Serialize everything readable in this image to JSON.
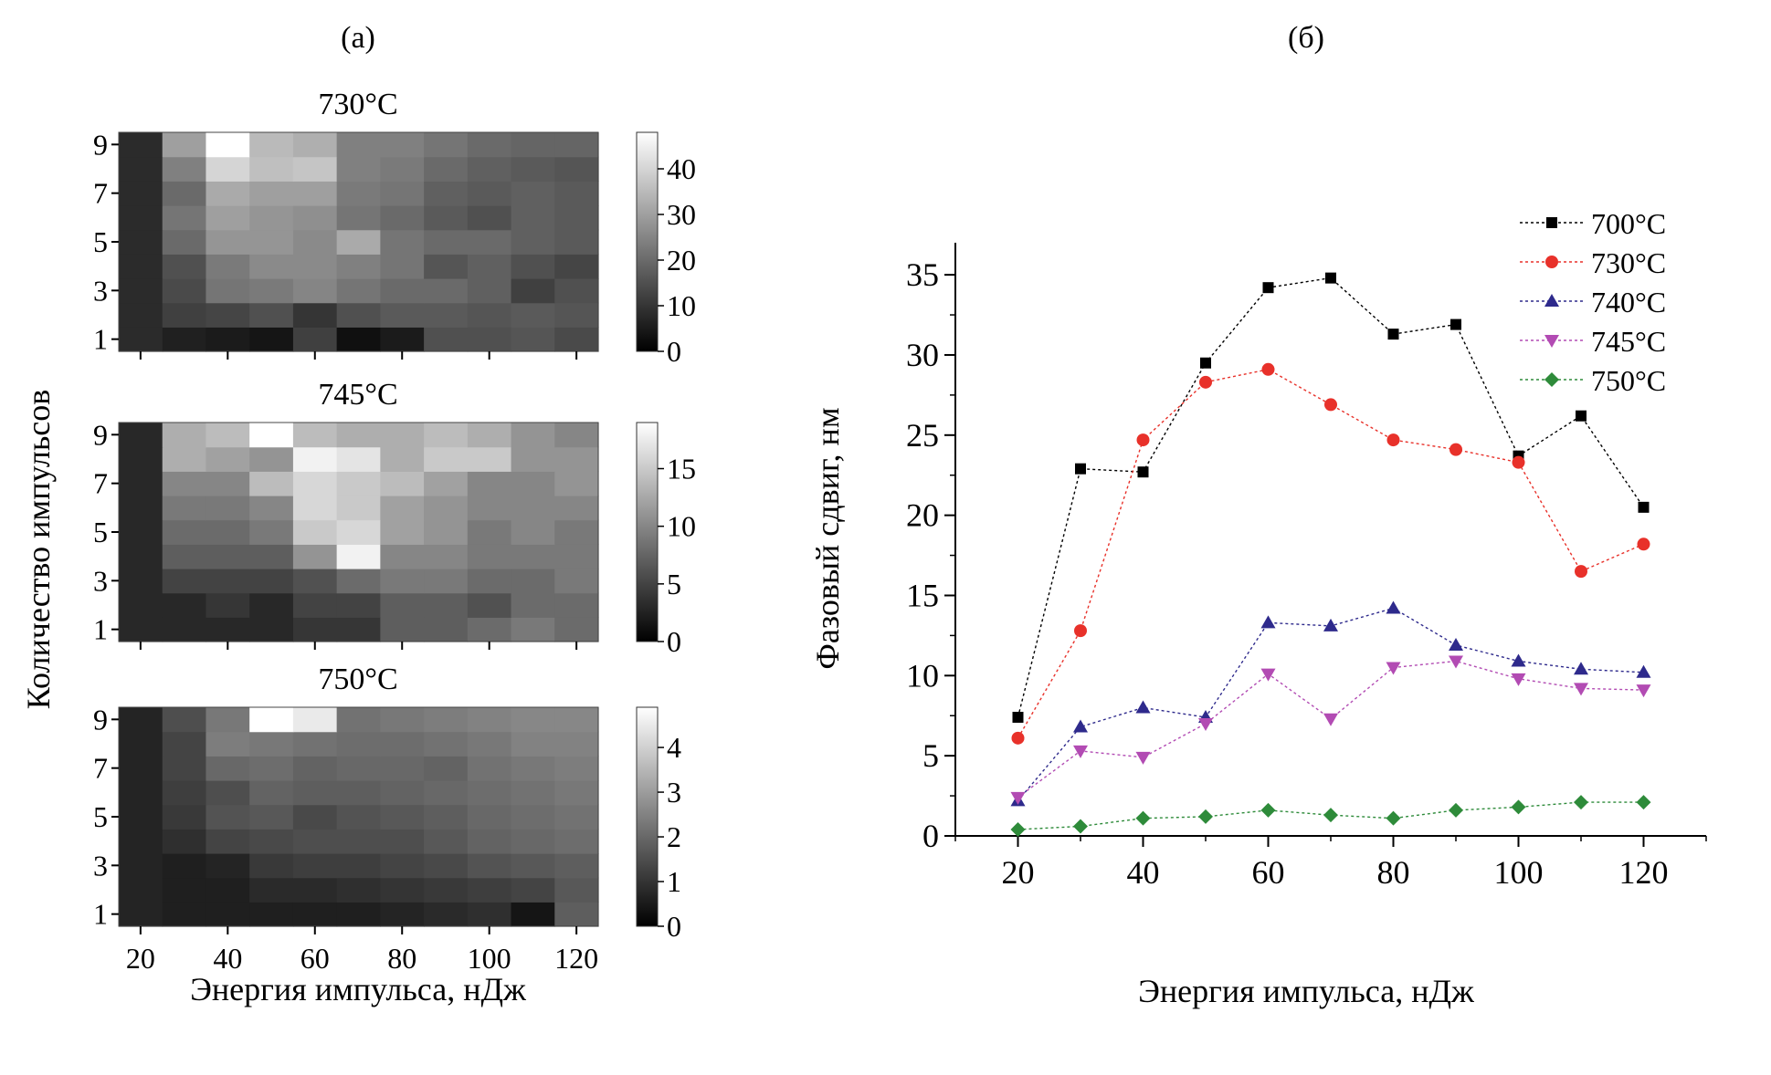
{
  "panels": {
    "a_label": "(а)",
    "b_label": "(б)"
  },
  "heatmaps": {
    "ylabel": "Количество импульсов",
    "xlabel": "Энергия импульса, нДж",
    "x_ticks": [
      "20",
      "40",
      "60",
      "80",
      "100",
      "120"
    ],
    "y_ticks": [
      "1",
      "3",
      "5",
      "7",
      "9"
    ]
  },
  "line_chart": {
    "ylabel": "Фазовый сдвиг, нм",
    "xlabel": "Энергия импульса, нДж"
  },
  "chart_data": [
    {
      "type": "heatmap",
      "title": "730°C",
      "x": [
        20,
        30,
        40,
        50,
        60,
        70,
        80,
        90,
        100,
        110,
        120
      ],
      "y": [
        1,
        2,
        3,
        4,
        5,
        6,
        7,
        8,
        9
      ],
      "colorbar_range": [
        0,
        48
      ],
      "colorbar_ticks": [
        "0",
        "10",
        "20",
        "30",
        "40"
      ],
      "values": [
        [
          8,
          6,
          5,
          4,
          12,
          3,
          5,
          15,
          15,
          16,
          14
        ],
        [
          8,
          12,
          13,
          15,
          10,
          15,
          17,
          17,
          16,
          17,
          16
        ],
        [
          8,
          14,
          22,
          23,
          25,
          22,
          20,
          20,
          18,
          12,
          15
        ],
        [
          8,
          15,
          23,
          26,
          26,
          24,
          22,
          16,
          18,
          15,
          13
        ],
        [
          8,
          20,
          28,
          28,
          26,
          32,
          22,
          20,
          20,
          18,
          17
        ],
        [
          8,
          22,
          30,
          28,
          27,
          22,
          20,
          17,
          15,
          18,
          17
        ],
        [
          8,
          20,
          32,
          30,
          30,
          23,
          22,
          18,
          17,
          18,
          17
        ],
        [
          8,
          24,
          40,
          36,
          37,
          24,
          23,
          20,
          18,
          17,
          16
        ],
        [
          8,
          30,
          48,
          35,
          33,
          24,
          24,
          22,
          20,
          19,
          19
        ]
      ]
    },
    {
      "type": "heatmap",
      "title": "745°C",
      "x": [
        20,
        30,
        40,
        50,
        60,
        70,
        80,
        90,
        100,
        110,
        120
      ],
      "y": [
        1,
        2,
        3,
        4,
        5,
        6,
        7,
        8,
        9
      ],
      "colorbar_range": [
        0,
        19
      ],
      "colorbar_ticks": [
        "0",
        "5",
        "10",
        "15"
      ],
      "values": [
        [
          3,
          3,
          3,
          3,
          4,
          4,
          7,
          7,
          8,
          9,
          8
        ],
        [
          3,
          3,
          4,
          3,
          5,
          5,
          7,
          7,
          6,
          8,
          8
        ],
        [
          3,
          5,
          5,
          5,
          6,
          8,
          9,
          9,
          8,
          8,
          9
        ],
        [
          3,
          7,
          7,
          7,
          11,
          18,
          10,
          10,
          9,
          9,
          9
        ],
        [
          3,
          8,
          8,
          9,
          15,
          16,
          12,
          11,
          9,
          10,
          9
        ],
        [
          3,
          9,
          9,
          10,
          16,
          15,
          12,
          11,
          10,
          10,
          10
        ],
        [
          3,
          10,
          10,
          14,
          16,
          15,
          14,
          12,
          10,
          10,
          11
        ],
        [
          3,
          13,
          12,
          11,
          18,
          17,
          13,
          15,
          15,
          11,
          11
        ],
        [
          3,
          13,
          14,
          19,
          14,
          13,
          13,
          14,
          13,
          11,
          10
        ]
      ]
    },
    {
      "type": "heatmap",
      "title": "750°C",
      "x": [
        20,
        30,
        40,
        50,
        60,
        70,
        80,
        90,
        100,
        110,
        120
      ],
      "y": [
        1,
        2,
        3,
        4,
        5,
        6,
        7,
        8,
        9
      ],
      "colorbar_range": [
        0,
        4.9
      ],
      "colorbar_ticks": [
        "0",
        "1",
        "2",
        "3",
        "4"
      ],
      "values": [
        [
          0.7,
          0.6,
          0.6,
          0.6,
          0.6,
          0.6,
          0.7,
          0.8,
          0.9,
          0.4,
          1.8
        ],
        [
          0.7,
          0.6,
          0.6,
          0.8,
          0.8,
          0.9,
          1.0,
          1.1,
          1.2,
          1.3,
          1.7
        ],
        [
          0.7,
          0.6,
          0.7,
          1.1,
          1.2,
          1.2,
          1.3,
          1.4,
          1.6,
          1.7,
          1.8
        ],
        [
          0.7,
          0.9,
          1.3,
          1.4,
          1.5,
          1.5,
          1.5,
          1.7,
          1.9,
          2.0,
          2.1
        ],
        [
          0.7,
          1.1,
          1.6,
          1.7,
          1.4,
          1.6,
          1.7,
          1.8,
          2.0,
          2.1,
          2.2
        ],
        [
          0.7,
          1.2,
          1.5,
          1.9,
          1.8,
          1.8,
          1.9,
          2.0,
          2.1,
          2.2,
          2.3
        ],
        [
          0.7,
          1.3,
          2.0,
          2.1,
          1.9,
          2.0,
          2.0,
          1.9,
          2.2,
          2.3,
          2.4
        ],
        [
          0.7,
          1.3,
          2.4,
          2.3,
          2.2,
          2.1,
          2.1,
          2.2,
          2.3,
          2.5,
          2.5
        ],
        [
          0.7,
          1.5,
          2.3,
          4.9,
          4.5,
          2.2,
          2.3,
          2.4,
          2.5,
          2.6,
          2.6
        ]
      ]
    },
    {
      "type": "line",
      "x": [
        20,
        30,
        40,
        50,
        60,
        70,
        80,
        90,
        100,
        110,
        120
      ],
      "xlim": [
        10,
        130
      ],
      "ylim": [
        0,
        37
      ],
      "x_ticks": [
        "20",
        "40",
        "60",
        "80",
        "100",
        "120"
      ],
      "y_ticks": [
        "0",
        "5",
        "10",
        "15",
        "20",
        "25",
        "30",
        "35"
      ],
      "legend_position": "top-right",
      "series": [
        {
          "name": "700°C",
          "color": "#000000",
          "marker": "square",
          "values": [
            7.4,
            22.9,
            22.7,
            29.5,
            34.2,
            34.8,
            31.3,
            31.9,
            23.7,
            26.2,
            20.5
          ]
        },
        {
          "name": "730°C",
          "color": "#e8312a",
          "marker": "circle",
          "values": [
            6.1,
            12.8,
            24.7,
            28.3,
            29.1,
            26.9,
            24.7,
            24.1,
            23.3,
            16.5,
            18.2
          ]
        },
        {
          "name": "740°C",
          "color": "#2e2a8c",
          "marker": "triangle-up",
          "values": [
            2.2,
            6.8,
            8.0,
            7.4,
            13.3,
            13.1,
            14.2,
            11.9,
            10.9,
            10.4,
            10.2
          ]
        },
        {
          "name": "745°C",
          "color": "#b24bb3",
          "marker": "triangle-down",
          "values": [
            2.4,
            5.3,
            4.9,
            7.0,
            10.1,
            7.3,
            10.5,
            10.9,
            9.8,
            9.2,
            9.1
          ]
        },
        {
          "name": "750°C",
          "color": "#2e8b3a",
          "marker": "diamond",
          "values": [
            0.4,
            0.6,
            1.1,
            1.2,
            1.6,
            1.3,
            1.1,
            1.6,
            1.8,
            2.1,
            2.1
          ]
        }
      ]
    }
  ]
}
